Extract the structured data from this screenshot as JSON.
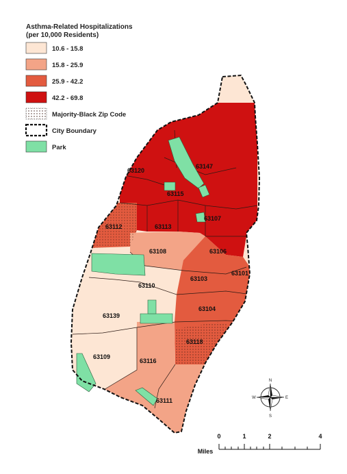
{
  "legend": {
    "title_line1": "Asthma-Related Hospitalizations",
    "title_line2": "(per 10,000 Residents)",
    "classes": [
      {
        "label": "10.6 - 15.8",
        "color": "#fde6d4"
      },
      {
        "label": "15.8 - 25.9",
        "color": "#f3a487"
      },
      {
        "label": "25.9 - 42.2",
        "color": "#e35b3f"
      },
      {
        "label": "42.2 - 69.8",
        "color": "#cf1111"
      }
    ],
    "majority_black": "Majority-Black Zip Code",
    "city_boundary": "City Boundary",
    "park": "Park",
    "park_color": "#7fe0a5"
  },
  "zip_codes": [
    {
      "zip": "63120"
    },
    {
      "zip": "63147"
    },
    {
      "zip": "63115"
    },
    {
      "zip": "63107"
    },
    {
      "zip": "63112"
    },
    {
      "zip": "63113"
    },
    {
      "zip": "63106"
    },
    {
      "zip": "63108"
    },
    {
      "zip": "63101"
    },
    {
      "zip": "63103"
    },
    {
      "zip": "63110"
    },
    {
      "zip": "63104"
    },
    {
      "zip": "63139"
    },
    {
      "zip": "63118"
    },
    {
      "zip": "63109"
    },
    {
      "zip": "63116"
    },
    {
      "zip": "63111"
    }
  ],
  "compass": {
    "n": "N",
    "s": "S",
    "e": "E",
    "w": "W"
  },
  "scale": {
    "unit": "Miles",
    "ticks": [
      "0",
      "1",
      "2",
      "4"
    ]
  }
}
